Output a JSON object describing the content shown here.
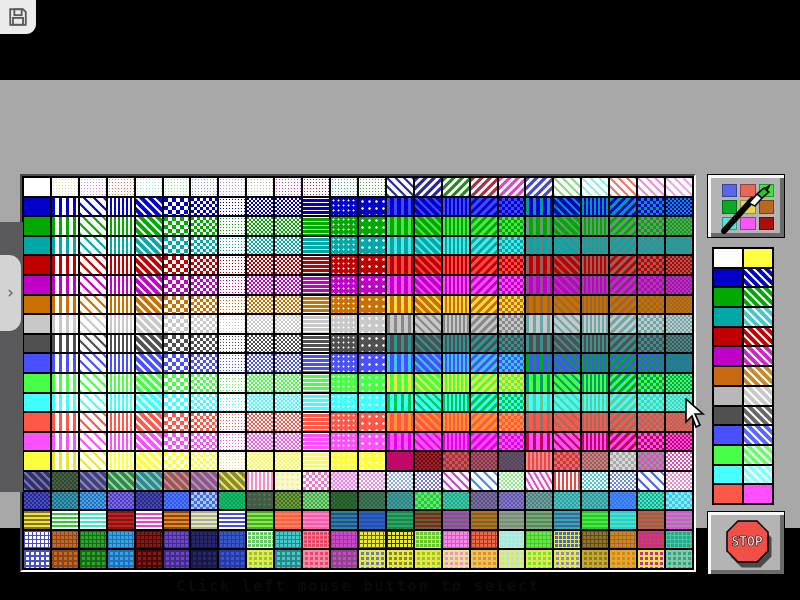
{
  "caption": {
    "text": "Click left mouse button to select"
  },
  "stop_button": {
    "label": "STOP"
  },
  "drawer_tab": {
    "chevron": "›"
  },
  "colors": {
    "screen_bg": "#A8A8A8",
    "page_bg": "#000000",
    "button_face": "#B4B4B4",
    "stop_red": "#F05048",
    "white": "#FFFFFF"
  },
  "palette_button": {
    "swatches": [
      "#5868E8",
      "#E86858",
      "#38E838",
      "#08A828",
      "#E8D848",
      "#B86820",
      "#48E8D8",
      "#F858F8",
      "#A81010"
    ]
  },
  "color_column": {
    "rows": [
      {
        "left": "#FFFFFF",
        "right": "#FFFF40",
        "hatch": false
      },
      {
        "left": "#0000C8",
        "right": "#0000C8",
        "hatch": true
      },
      {
        "left": "#00A800",
        "right": "#00A800",
        "hatch": true
      },
      {
        "left": "#00A8A8",
        "right": "#48C8C8",
        "hatch": true
      },
      {
        "left": "#C00000",
        "right": "#C00000",
        "hatch": true
      },
      {
        "left": "#C000C8",
        "right": "#C828C8",
        "hatch": true
      },
      {
        "left": "#C86810",
        "right": "#C88828",
        "hatch": true
      },
      {
        "left": "#B8B8B8",
        "right": "#C8C8C8",
        "hatch": true
      },
      {
        "left": "#505050",
        "right": "#686868",
        "hatch": true
      },
      {
        "left": "#4850FF",
        "right": "#5868FF",
        "hatch": true
      },
      {
        "left": "#48FF48",
        "right": "#68FF68",
        "hatch": true
      },
      {
        "left": "#48FFFF",
        "right": "#88FFFF",
        "hatch": true
      },
      {
        "left": "#FF5848",
        "right": "#FF50FF",
        "hatch": false
      }
    ]
  },
  "grid": {
    "cols": 24,
    "rows": 20,
    "col_patterns": [
      {
        "p": "solid",
        "m": "base"
      },
      {
        "p": "vw",
        "m": "white",
        "inv": true
      },
      {
        "p": "diags",
        "m": "white",
        "inv": true
      },
      {
        "p": "vt",
        "m": "white"
      },
      {
        "p": "diagd",
        "m": "white"
      },
      {
        "p": "ck4",
        "m": "white"
      },
      {
        "p": "ck3",
        "m": "white"
      },
      {
        "p": "dotw",
        "m": "white",
        "inv": true
      },
      {
        "p": "ck2",
        "m": "white"
      },
      {
        "p": "ck2",
        "m": "white"
      },
      {
        "p": "hdash",
        "m": "white"
      },
      {
        "p": "dots",
        "m": "white"
      },
      {
        "p": "dots2",
        "m": "white"
      },
      {
        "p": "vw",
        "m": "bright"
      },
      {
        "p": "diagd",
        "m": "bright"
      },
      {
        "p": "vt",
        "m": "bright"
      },
      {
        "p": "diagd2",
        "m": "bright"
      },
      {
        "p": "ck3",
        "m": "bright"
      },
      {
        "p": "vw",
        "m": "sec"
      },
      {
        "p": "diagd",
        "m": "sec"
      },
      {
        "p": "vt",
        "m": "sec"
      },
      {
        "p": "diagd2",
        "m": "sec"
      },
      {
        "p": "ck3",
        "m": "sec"
      },
      {
        "p": "ck2",
        "m": "sec"
      }
    ],
    "standard_rows": [
      {
        "base": "#0000C8",
        "bright": "#4048FF",
        "sec": "#0098A8"
      },
      {
        "base": "#00A800",
        "bright": "#48E848",
        "sec": "#689878"
      },
      {
        "base": "#00A8A8",
        "bright": "#48E8E8",
        "sec": "#588888"
      },
      {
        "base": "#C00000",
        "bright": "#FF4848",
        "sec": "#986058"
      },
      {
        "base": "#C000C8",
        "bright": "#FF48FF",
        "sec": "#984898"
      },
      {
        "base": "#C87000",
        "bright": "#FFD848",
        "sec": "#986830"
      },
      {
        "base": "#C8C8C8",
        "bright": "#888888",
        "sec": "#68A8A8"
      },
      {
        "base": "#505050",
        "bright": "#289898",
        "sec": "#389090"
      },
      {
        "base": "#4850FF",
        "bright": "#38C8E8",
        "sec": "#00A820"
      },
      {
        "base": "#48FF48",
        "bright": "#E8E848",
        "sec": "#00A068"
      },
      {
        "base": "#40FFFF",
        "bright": "#00C848",
        "sec": "#68C898"
      },
      {
        "base": "#FF5848",
        "bright": "#FF9828",
        "sec": "#987068"
      },
      {
        "base": "#FF50FF",
        "bright": "#E800E8",
        "sec": "#C80058"
      }
    ],
    "special_rows": {
      "1": [
        [
          "#FFFFFF",
          "#FFFFFF",
          "solid"
        ],
        [
          "#FFFFFF",
          "#E8E088",
          "dotw"
        ],
        [
          "#FFFFFF",
          "#F088F0",
          "dotw"
        ],
        [
          "#FFFFFF",
          "#F07860",
          "dotw"
        ],
        [
          "#FFFFFF",
          "#98E8E0",
          "dotw"
        ],
        [
          "#FFFFFF",
          "#90E090",
          "dotw"
        ],
        [
          "#FFFFFF",
          "#9098E8",
          "dotw"
        ],
        [
          "#FFFFFF",
          "#B890E0",
          "dotw"
        ],
        [
          "#FFFFFF",
          "#C0C0A0",
          "dotw"
        ],
        [
          "#FFFFFF",
          "#C848C8",
          "dotw"
        ],
        [
          "#FFFFFF",
          "#A83838",
          "dotw"
        ],
        [
          "#FFFFFF",
          "#38B0B0",
          "dotw"
        ],
        [
          "#FFFFFF",
          "#48A848",
          "dotw"
        ],
        [
          "#FFFFFF",
          "#2828A0",
          "diagd"
        ],
        [
          "#FFFFFF",
          "#2828A0",
          "diagd2"
        ],
        [
          "#FFFFFF",
          "#288828",
          "diagd2"
        ],
        [
          "#FFFFFF",
          "#A83048",
          "diagd2"
        ],
        [
          "#FFFFFF",
          "#D848C8",
          "diagd2"
        ],
        [
          "#FFFFFF",
          "#4848C8",
          "diagd2"
        ],
        [
          "#FFFFFF",
          "#88D888",
          "diagd"
        ],
        [
          "#FFFFFF",
          "#98E8E8",
          "diagd"
        ],
        [
          "#FFFFFF",
          "#E87868",
          "diagd"
        ],
        [
          "#FFFFFF",
          "#F090D8",
          "diagd"
        ],
        [
          "#FFFFFF",
          "#E8A8E8",
          "diagd"
        ]
      ],
      "15": [
        [
          "#FFFF40",
          "#FFFF40",
          "solid"
        ],
        [
          "#FFFFFF",
          "#E8E830",
          "vw"
        ],
        [
          "#FFFFFF",
          "#E8E830",
          "diags"
        ],
        [
          "#FFFF40",
          "#FFFFFF",
          "vt"
        ],
        [
          "#FFFF40",
          "#FFFFFF",
          "diagd"
        ],
        [
          "#FFFF40",
          "#FFFFFF",
          "ck4"
        ],
        [
          "#FFFF40",
          "#FFFFFF",
          "ck3"
        ],
        [
          "#FFFFFF",
          "#E8E060",
          "dotw"
        ],
        [
          "#FFFF40",
          "#FFFFFF",
          "ck2"
        ],
        [
          "#FFFF40",
          "#FFFFFF",
          "ck2"
        ],
        [
          "#FFFF40",
          "#FFFFFF",
          "hdash"
        ],
        [
          "#FFFF40",
          "#FFFFFF",
          "dots"
        ],
        [
          "#FFFF40",
          "#FFFFFF",
          "dots2"
        ],
        [
          "#C00868",
          "#C00868",
          "solid"
        ],
        [
          "#A82028",
          "#681018",
          "ck2"
        ],
        [
          "#A83038",
          "#C85858",
          "ck3"
        ],
        [
          "#883048",
          "#A85868",
          "ck2"
        ],
        [
          "#685068",
          "#504858",
          "ck2"
        ],
        [
          "#E84848",
          "#FF8888",
          "vt"
        ],
        [
          "#C83838",
          "#E86868",
          "ck3"
        ],
        [
          "#989898",
          "#C84848",
          "ck2"
        ],
        [
          "#A8A8A8",
          "#D8D8D8",
          "ck3"
        ],
        [
          "#989898",
          "#E848C8",
          "ck3"
        ],
        [
          "#E848A8",
          "#FFFFFF",
          "ck2"
        ]
      ],
      "16": [
        [
          "#303070",
          "#7878A8",
          "diagd"
        ],
        [
          "#304830",
          "#486048",
          "ck2"
        ],
        [
          "#404080",
          "#8888B0",
          "diagd"
        ],
        [
          "#308850",
          "#98D898",
          "diagd"
        ],
        [
          "#308888",
          "#88C8C8",
          "diagd"
        ],
        [
          "#985858",
          "#C89090",
          "diagd"
        ],
        [
          "#885888",
          "#B890B8",
          "diagd"
        ],
        [
          "#888838",
          "#E8E858",
          "diagd"
        ],
        [
          "#FFFFFF",
          "#FF88C8",
          "vt"
        ],
        [
          "#F8F8C8",
          "#E8E888",
          "dots"
        ],
        [
          "#FFFFFF",
          "#F078C8",
          "ck3"
        ],
        [
          "#F8D8F8",
          "#E088E0",
          "ck2"
        ],
        [
          "#FFFFFF",
          "#F088D8",
          "ck2"
        ],
        [
          "#FFFFFF",
          "#88A8E8",
          "ck2"
        ],
        [
          "#FFFFFF",
          "#7878D8",
          "ck2"
        ],
        [
          "#FFFFFF",
          "#C848C8",
          "diagd"
        ],
        [
          "#FFFFFF",
          "#4888E8",
          "diags"
        ],
        [
          "#F0FFF0",
          "#98E898",
          "ck2"
        ],
        [
          "#FFFFFF",
          "#E848C8",
          "zig"
        ],
        [
          "#FFFFFF",
          "#E84848",
          "vt"
        ],
        [
          "#FFFFFF",
          "#48C8D8",
          "ck2"
        ],
        [
          "#FFFFFF",
          "#6888E8",
          "ck2"
        ],
        [
          "#FFFFFF",
          "#4868E8",
          "diags"
        ],
        [
          "#FFFFFF",
          "#E888C8",
          "ck2"
        ]
      ],
      "17": [
        [
          "#282888",
          "#4850C8",
          "ck2"
        ],
        [
          "#286888",
          "#30A0B0",
          "ck2"
        ],
        [
          "#2868C8",
          "#48A8D8",
          "ck2"
        ],
        [
          "#4040C8",
          "#8868D8",
          "ck2"
        ],
        [
          "#282888",
          "#4848A8",
          "ck2"
        ],
        [
          "#3058E8",
          "#5078F8",
          "ck2"
        ],
        [
          "#4868E8",
          "#A8C8F8",
          "ck3"
        ],
        [
          "#00A858",
          "#20B868",
          "ck2"
        ],
        [
          "#485848",
          "#309058",
          "dots"
        ],
        [
          "#506830",
          "#60A830",
          "ck2"
        ],
        [
          "#40A848",
          "#88D888",
          "ck2"
        ],
        [
          "#205828",
          "#306838",
          "ck2"
        ],
        [
          "#306048",
          "#407858",
          "ck2"
        ],
        [
          "#308080",
          "#40A0A0",
          "ck2"
        ],
        [
          "#20C848",
          "#68E868",
          "ck3"
        ],
        [
          "#20A888",
          "#40C8A8",
          "ck2"
        ],
        [
          "#505878",
          "#8868A8",
          "ck2"
        ],
        [
          "#6058A8",
          "#8878C8",
          "ck2"
        ],
        [
          "#508080",
          "#70A0A0",
          "ck2"
        ],
        [
          "#30A0A0",
          "#50C0C0",
          "ck2"
        ],
        [
          "#309898",
          "#50B8B8",
          "ck2"
        ],
        [
          "#3078E8",
          "#4888F8",
          "ck2"
        ],
        [
          "#20A888",
          "#40E8C8",
          "ck2"
        ],
        [
          "#40C8E8",
          "#88E8F8",
          "ck3"
        ]
      ],
      "18": [
        [
          "#E8E840",
          "#887020",
          "hstripes"
        ],
        [
          "#30C830",
          "#FFFFFF",
          "hstripes"
        ],
        [
          "#40E8C8",
          "#FFFFFF",
          "hstripes"
        ],
        [
          "#C82020",
          "#801818",
          "hstripes"
        ],
        [
          "#E840C8",
          "#FFFFFF",
          "hstripes"
        ],
        [
          "#E88820",
          "#884810",
          "hstripes"
        ],
        [
          "#E8E8A8",
          "#A8A8A8",
          "hstripes"
        ],
        [
          "#4848E8",
          "#FFFFFF",
          "hstripes"
        ],
        [
          "#88E848",
          "#48A828",
          "hstripes"
        ],
        [
          "#FF8848",
          "#FF5858",
          "hstripes"
        ],
        [
          "#FF88C8",
          "#FF58A8",
          "hstripes"
        ],
        [
          "#2848A8",
          "#288888",
          "hstripes"
        ],
        [
          "#2848C8",
          "#2868A8",
          "hstripes"
        ],
        [
          "#28A868",
          "#188848",
          "hstripes"
        ],
        [
          "#882020",
          "#586830",
          "hstripes"
        ],
        [
          "#686868",
          "#A848C8",
          "hstripes"
        ],
        [
          "#687020",
          "#C86820",
          "hstripes"
        ],
        [
          "#689868",
          "#989898",
          "hstripes"
        ],
        [
          "#588858",
          "#78A878",
          "hstripes"
        ],
        [
          "#3868A8",
          "#38A8A8",
          "hstripes"
        ],
        [
          "#48E848",
          "#28C828",
          "hstripes"
        ],
        [
          "#48E8A8",
          "#28C8E8",
          "hstripes"
        ],
        [
          "#886848",
          "#C85848",
          "hstripes"
        ],
        [
          "#989898",
          "#E848E8",
          "hstripes"
        ]
      ],
      "19": [
        [
          "#FFFFFF",
          "#4848C8",
          "plaid"
        ],
        [
          "#C86828",
          "#884818",
          "plaid"
        ],
        [
          "#28A828",
          "#186818",
          "plaid"
        ],
        [
          "#28B0C8",
          "#2868C8",
          "plaid"
        ],
        [
          "#881818",
          "#480808",
          "plaid"
        ],
        [
          "#6848C8",
          "#482888",
          "plaid"
        ],
        [
          "#282868",
          "#181848",
          "plaid"
        ],
        [
          "#3858C8",
          "#2838A8",
          "plaid"
        ],
        [
          "#68C868",
          "#FFFFFF",
          "plaid"
        ],
        [
          "#48C8C8",
          "#288888",
          "plaid"
        ],
        [
          "#E84868",
          "#F888A8",
          "plaid"
        ],
        [
          "#C848C8",
          "#884888",
          "plaid"
        ],
        [
          "#E8E848",
          "#4848C8",
          "plaid"
        ],
        [
          "#E8E848",
          "#282828",
          "plaid"
        ],
        [
          "#68C828",
          "#E8E848",
          "plaid"
        ],
        [
          "#F888E8",
          "#E848E8",
          "plaid"
        ],
        [
          "#E86848",
          "#C82828",
          "plaid"
        ],
        [
          "#A8E8D8",
          "#E8E878",
          "plaid"
        ],
        [
          "#68E848",
          "#48C828",
          "plaid"
        ],
        [
          "#4868C8",
          "#E8E848",
          "plaid"
        ],
        [
          "#887828",
          "#684818",
          "plaid"
        ],
        [
          "#C88828",
          "#A86818",
          "plaid"
        ],
        [
          "#C828A8",
          "#C84848",
          "plaid"
        ],
        [
          "#28A888",
          "#48C8A8",
          "plaid"
        ]
      ],
      "20": [
        [
          "#FFFFFF",
          "#4850C8",
          "plaid2"
        ],
        [
          "#C86828",
          "#884818",
          "plaid2"
        ],
        [
          "#28A828",
          "#186818",
          "plaid2"
        ],
        [
          "#28B0C8",
          "#2868C8",
          "plaid2"
        ],
        [
          "#881818",
          "#480808",
          "plaid2"
        ],
        [
          "#6848C8",
          "#482888",
          "plaid2"
        ],
        [
          "#282868",
          "#181848",
          "plaid2"
        ],
        [
          "#3858C8",
          "#2838A8",
          "plaid2"
        ],
        [
          "#88C848",
          "#E8E848",
          "plaid2"
        ],
        [
          "#48C8C8",
          "#288888",
          "plaid2"
        ],
        [
          "#E84868",
          "#F888A8",
          "plaid2"
        ],
        [
          "#C848C8",
          "#884888",
          "plaid2"
        ],
        [
          "#6878C8",
          "#E8E848",
          "plaid2"
        ],
        [
          "#888828",
          "#E8E848",
          "plaid2"
        ],
        [
          "#98C828",
          "#E8E848",
          "plaid2"
        ],
        [
          "#F888E8",
          "#E8E888",
          "plaid2"
        ],
        [
          "#E88848",
          "#E8C848",
          "plaid2"
        ],
        [
          "#A8E8D8",
          "#E8E878",
          "plaid2"
        ],
        [
          "#68E848",
          "#E8E848",
          "plaid2"
        ],
        [
          "#8888C8",
          "#E8E848",
          "plaid2"
        ],
        [
          "#887828",
          "#C8A828",
          "plaid2"
        ],
        [
          "#C88828",
          "#E8A828",
          "plaid2"
        ],
        [
          "#C828A8",
          "#E8E848",
          "plaid2"
        ],
        [
          "#28A888",
          "#88C8A8",
          "plaid2"
        ]
      ]
    }
  }
}
